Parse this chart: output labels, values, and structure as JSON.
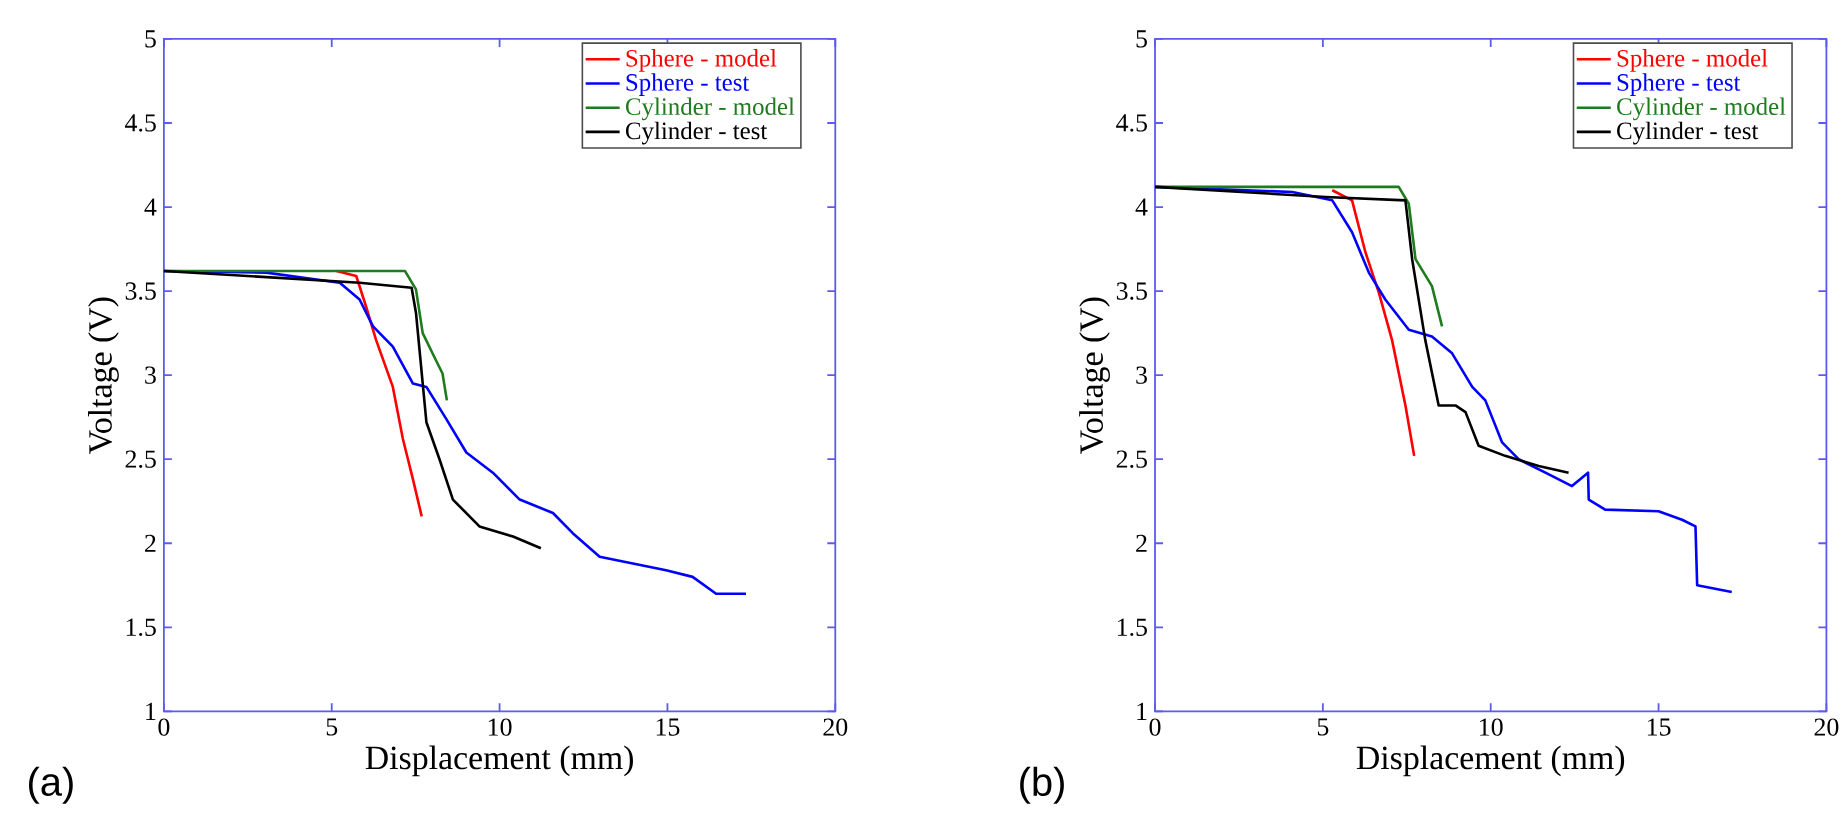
{
  "chart_data": [
    {
      "type": "line",
      "xlabel": "Displacement (mm)",
      "ylabel": "Voltage (V)",
      "xlim": [
        0,
        20
      ],
      "ylim": [
        1,
        5
      ],
      "xticks": [
        0,
        5,
        10,
        15,
        20
      ],
      "yticks": [
        1,
        1.5,
        2,
        2.5,
        3,
        3.5,
        4,
        4.5,
        5
      ],
      "legend": "top right",
      "annotations": [
        "(a)"
      ],
      "series": [
        {
          "name": "Sphere - model",
          "color": "#ff0000",
          "x": [
            5.14,
            5.73,
            6.02,
            6.32,
            6.82,
            7.12,
            7.42,
            7.68
          ],
          "values": [
            3.62,
            3.59,
            3.41,
            3.21,
            2.93,
            2.62,
            2.38,
            2.16
          ]
        },
        {
          "name": "Sphere - test",
          "color": "#0000ff",
          "x": [
            0,
            3.05,
            5.24,
            5.83,
            6.23,
            6.82,
            7.42,
            7.82,
            8.41,
            9.01,
            9.8,
            10.6,
            11.59,
            12.18,
            12.98,
            13.97,
            14.96,
            15.75,
            16.45,
            17.34
          ],
          "values": [
            3.62,
            3.61,
            3.55,
            3.45,
            3.29,
            3.17,
            2.95,
            2.93,
            2.74,
            2.54,
            2.42,
            2.26,
            2.18,
            2.06,
            1.92,
            1.88,
            1.84,
            1.8,
            1.7,
            1.7
          ]
        },
        {
          "name": "Cylinder - model",
          "color": "#1e7b1e",
          "x": [
            0,
            7.18,
            7.51,
            7.71,
            8.1,
            8.3,
            8.43
          ],
          "values": [
            3.62,
            3.62,
            3.51,
            3.25,
            3.09,
            3.01,
            2.85
          ]
        },
        {
          "name": "Cylinder - test",
          "color": "#000000",
          "x": [
            0,
            5.83,
            7.38,
            7.51,
            7.82,
            8.21,
            8.61,
            9.4,
            10.4,
            11.23
          ],
          "values": [
            3.62,
            3.55,
            3.52,
            3.37,
            2.72,
            2.5,
            2.26,
            2.1,
            2.04,
            1.97
          ]
        }
      ]
    },
    {
      "type": "line",
      "xlabel": "Displacement (mm)",
      "ylabel": "Voltage (V)",
      "xlim": [
        0,
        20
      ],
      "ylim": [
        1,
        5
      ],
      "xticks": [
        0,
        5,
        10,
        15,
        20
      ],
      "yticks": [
        1,
        1.5,
        2,
        2.5,
        3,
        3.5,
        4,
        4.5,
        5
      ],
      "legend": "top right",
      "annotations": [
        "(b)"
      ],
      "series": [
        {
          "name": "Sphere - model",
          "color": "#ff0000",
          "x": [
            5.28,
            5.87,
            6.27,
            6.67,
            7.06,
            7.46,
            7.72
          ],
          "values": [
            4.1,
            4.04,
            3.73,
            3.49,
            3.21,
            2.82,
            2.52
          ]
        },
        {
          "name": "Sphere - test",
          "color": "#0000ff",
          "x": [
            0,
            4.09,
            5.28,
            5.87,
            6.37,
            6.86,
            7.56,
            8.25,
            8.85,
            9.45,
            9.84,
            10.34,
            10.83,
            11.63,
            12.42,
            12.9,
            12.92,
            13.41,
            15.0,
            15.7,
            16.1,
            16.15,
            17.18
          ],
          "values": [
            4.12,
            4.09,
            4.04,
            3.85,
            3.61,
            3.45,
            3.27,
            3.23,
            3.13,
            2.93,
            2.85,
            2.6,
            2.5,
            2.42,
            2.34,
            2.42,
            2.26,
            2.2,
            2.19,
            2.14,
            2.1,
            1.75,
            1.71
          ]
        },
        {
          "name": "Cylinder - model",
          "color": "#1e7b1e",
          "x": [
            0,
            7.26,
            7.56,
            7.76,
            8.25,
            8.55
          ],
          "values": [
            4.12,
            4.12,
            4.02,
            3.69,
            3.53,
            3.29
          ]
        },
        {
          "name": "Cylinder - test",
          "color": "#000000",
          "x": [
            0,
            5.08,
            7.46,
            7.66,
            8.05,
            8.45,
            8.95,
            9.25,
            9.64,
            10.43,
            11.43,
            12.32
          ],
          "values": [
            4.12,
            4.06,
            4.04,
            3.69,
            3.21,
            2.82,
            2.82,
            2.78,
            2.58,
            2.52,
            2.46,
            2.42
          ]
        }
      ]
    }
  ]
}
